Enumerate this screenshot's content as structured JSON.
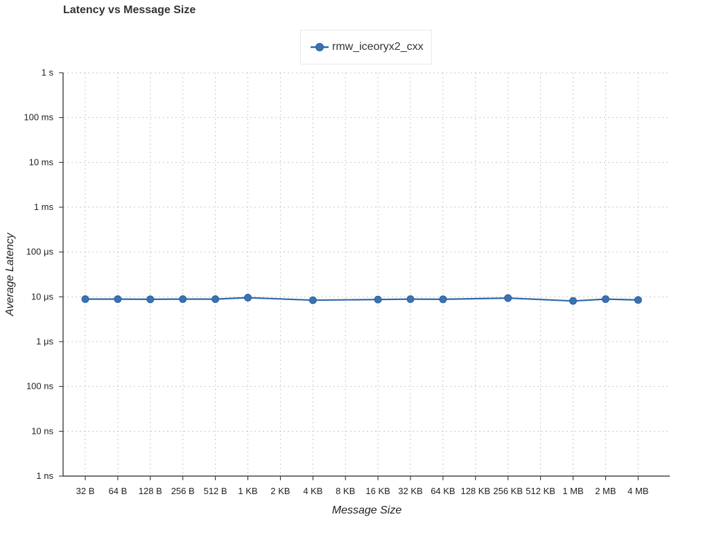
{
  "chart_data": {
    "type": "line",
    "title": "Latency vs Message Size",
    "xlabel": "Message Size",
    "ylabel": "Average Latency",
    "yscale": "log",
    "ylim_seconds": [
      1e-09,
      1
    ],
    "grid": true,
    "legend_position": "top-center",
    "categories": [
      "32 B",
      "64 B",
      "128 B",
      "256 B",
      "512 B",
      "1 KB",
      "2 KB",
      "4 KB",
      "8 KB",
      "16 KB",
      "32 KB",
      "64 KB",
      "128 KB",
      "256 KB",
      "512 KB",
      "1 MB",
      "2 MB",
      "4 MB"
    ],
    "y_ticks": [
      {
        "value": 1e-09,
        "label": "1 ns"
      },
      {
        "value": 1e-08,
        "label": "10 ns"
      },
      {
        "value": 1e-07,
        "label": "100 ns"
      },
      {
        "value": 1e-06,
        "label": "1 μs"
      },
      {
        "value": 1e-05,
        "label": "10 μs"
      },
      {
        "value": 0.0001,
        "label": "100 μs"
      },
      {
        "value": 0.001,
        "label": "1 ms"
      },
      {
        "value": 0.01,
        "label": "10 ms"
      },
      {
        "value": 0.1,
        "label": "100 ms"
      },
      {
        "value": 1,
        "label": "1 s"
      }
    ],
    "series": [
      {
        "name": "rmw_iceoryx2_cxx",
        "color": "#2f68a8",
        "points": [
          {
            "x": "32 B",
            "y": 8.9e-06
          },
          {
            "x": "64 B",
            "y": 8.9e-06
          },
          {
            "x": "128 B",
            "y": 8.8e-06
          },
          {
            "x": "256 B",
            "y": 8.9e-06
          },
          {
            "x": "512 B",
            "y": 8.9e-06
          },
          {
            "x": "1 KB",
            "y": 9.6e-06
          },
          {
            "x": "4 KB",
            "y": 8.4e-06
          },
          {
            "x": "16 KB",
            "y": 8.7e-06
          },
          {
            "x": "32 KB",
            "y": 8.9e-06
          },
          {
            "x": "64 KB",
            "y": 8.8e-06
          },
          {
            "x": "256 KB",
            "y": 9.4e-06
          },
          {
            "x": "1 MB",
            "y": 8.1e-06
          },
          {
            "x": "2 MB",
            "y": 8.9e-06
          },
          {
            "x": "4 MB",
            "y": 8.5e-06
          }
        ]
      }
    ]
  }
}
